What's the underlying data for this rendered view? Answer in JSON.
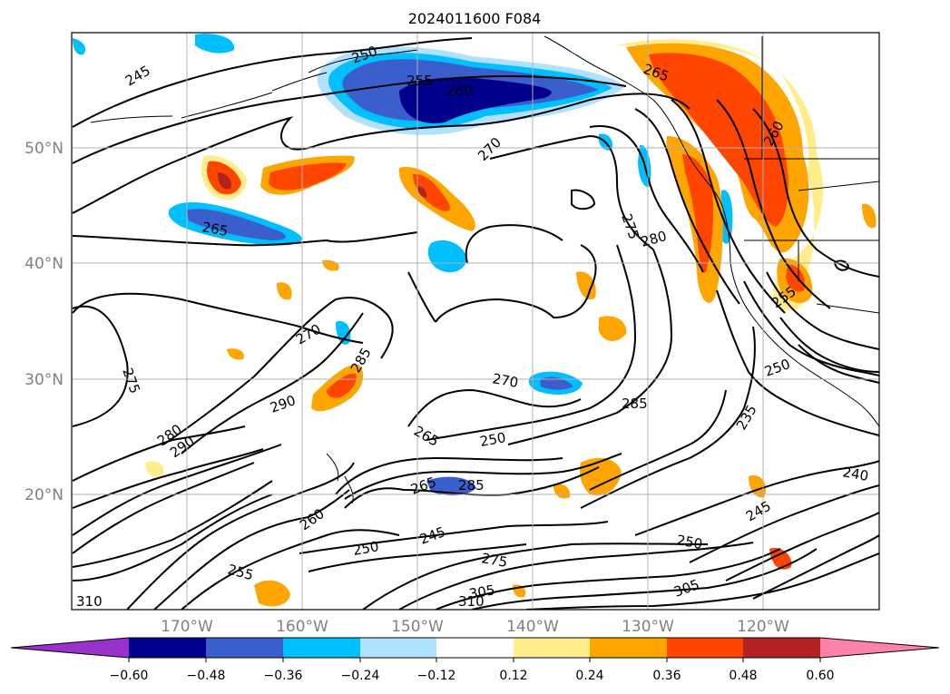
{
  "title": "2024011600 F084",
  "colors": {
    "contour": "#000000",
    "coast": "#000000",
    "grid": "#b0b0b0",
    "tick_label": "#808080"
  },
  "lat_labels": [
    "50°N",
    "40°N",
    "30°N",
    "20°N"
  ],
  "lon_labels": [
    "170°W",
    "160°W",
    "150°W",
    "140°W",
    "130°W",
    "120°W"
  ],
  "contour_labels": [
    "245",
    "250",
    "255",
    "260",
    "270",
    "265",
    "275",
    "280",
    "270",
    "285",
    "290",
    "280",
    "290",
    "270",
    "265",
    "250",
    "285",
    "265",
    "245",
    "250",
    "305",
    "310",
    "260",
    "250",
    "255",
    "235",
    "240",
    "245",
    "250",
    "305",
    "310",
    "275",
    "265",
    "285",
    "260",
    "275",
    "255"
  ],
  "colorbar": {
    "ticks": [
      "−0.60",
      "−0.48",
      "−0.36",
      "−0.24",
      "−0.12",
      "0.12",
      "0.24",
      "0.36",
      "0.48",
      "0.60"
    ],
    "colors": [
      "#9932cc",
      "#00008b",
      "#3a5fcd",
      "#00bfff",
      "#b0e2ff",
      "#ffffff",
      "#ffec8b",
      "#ffa500",
      "#ff4500",
      "#b22222",
      "#ff82ab"
    ]
  }
}
